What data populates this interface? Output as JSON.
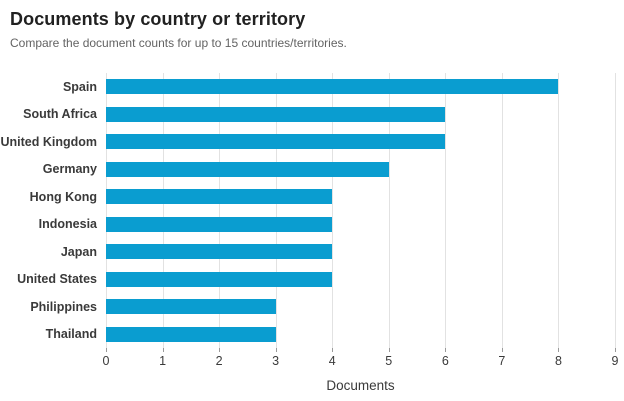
{
  "header": {
    "title": "Documents by country or territory",
    "subtitle": "Compare the document counts for up to 15 countries/territories."
  },
  "chart_data": {
    "type": "bar",
    "orientation": "horizontal",
    "title": "Documents by country or territory",
    "subtitle": "Compare the document counts for up to 15 countries/territories.",
    "categories": [
      "Spain",
      "South Africa",
      "United Kingdom",
      "Germany",
      "Hong Kong",
      "Indonesia",
      "Japan",
      "United States",
      "Philippines",
      "Thailand"
    ],
    "values": [
      8,
      6,
      6,
      5,
      4,
      4,
      4,
      4,
      3,
      3
    ],
    "xlabel": "Documents",
    "ylabel": "",
    "xlim": [
      0,
      9
    ],
    "xticks": [
      0,
      1,
      2,
      3,
      4,
      5,
      6,
      7,
      8,
      9
    ],
    "grid": true,
    "legend": "none",
    "bar_color": "#0a9dd0",
    "grid_color": "#e2e2e2"
  }
}
